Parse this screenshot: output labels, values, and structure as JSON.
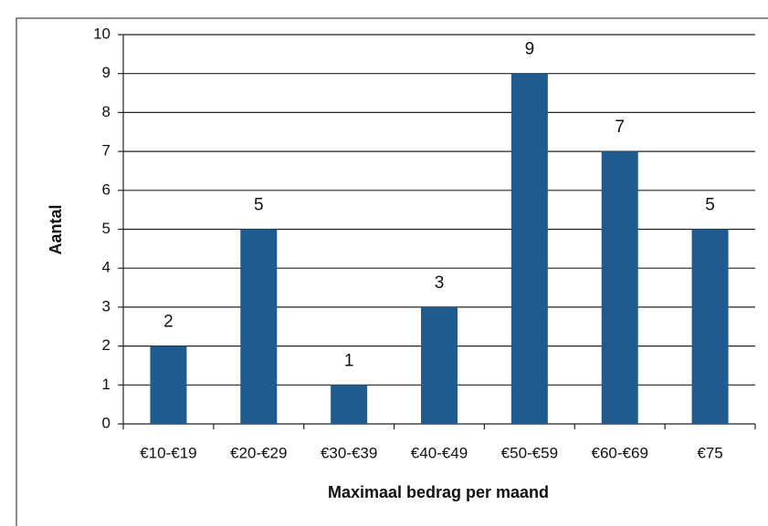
{
  "chart_data": {
    "type": "bar",
    "categories": [
      "€10-€19",
      "€20-€29",
      "€30-€39",
      "€40-€49",
      "€50-€59",
      "€60-€69",
      "€75"
    ],
    "values": [
      2,
      5,
      1,
      3,
      9,
      7,
      5
    ],
    "color": "#1f5b8e",
    "xlabel": "Maximaal bedrag per maand",
    "ylabel": "Aantal",
    "ylim": [
      0,
      10
    ],
    "yticks": [
      0,
      1,
      2,
      3,
      4,
      5,
      6,
      7,
      8,
      9,
      10
    ],
    "grid": true
  }
}
